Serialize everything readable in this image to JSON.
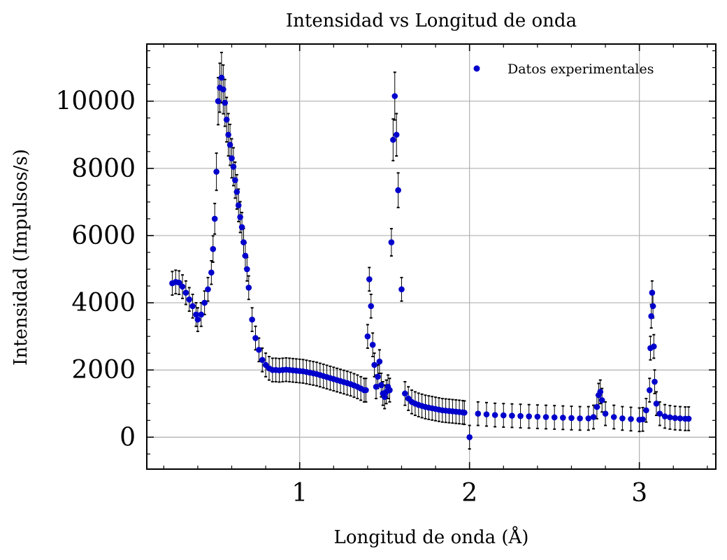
{
  "chart_data": {
    "type": "scatter",
    "title": "Intensidad vs Longitud de onda",
    "xlabel": "Longitud de onda (Å)",
    "ylabel": "Intensidad (Impulsos/s)",
    "xlim": [
      0.1,
      3.45
    ],
    "ylim": [
      -950,
      11700
    ],
    "xticks": [
      1,
      2,
      3
    ],
    "yticks": [
      0,
      2000,
      4000,
      6000,
      8000,
      10000
    ],
    "grid": true,
    "legend": {
      "position": "top-right",
      "entries": [
        "Datos experimentales"
      ]
    },
    "series": [
      {
        "name": "Datos experimentales",
        "color": "#0000cc",
        "errorbar_color": "#000000",
        "error_fraction": 0.07,
        "error_floor": 350,
        "x": [
          0.25,
          0.27,
          0.29,
          0.31,
          0.33,
          0.35,
          0.37,
          0.39,
          0.4,
          0.42,
          0.44,
          0.46,
          0.48,
          0.49,
          0.5,
          0.51,
          0.52,
          0.53,
          0.54,
          0.55,
          0.56,
          0.57,
          0.58,
          0.59,
          0.6,
          0.61,
          0.62,
          0.63,
          0.64,
          0.65,
          0.66,
          0.67,
          0.68,
          0.69,
          0.7,
          0.72,
          0.74,
          0.76,
          0.78,
          0.8,
          0.82,
          0.84,
          0.86,
          0.88,
          0.9,
          0.92,
          0.94,
          0.96,
          0.98,
          1.0,
          1.02,
          1.04,
          1.06,
          1.08,
          1.1,
          1.12,
          1.14,
          1.16,
          1.18,
          1.2,
          1.22,
          1.24,
          1.26,
          1.28,
          1.3,
          1.32,
          1.34,
          1.36,
          1.38,
          1.39,
          1.4,
          1.41,
          1.42,
          1.43,
          1.44,
          1.45,
          1.46,
          1.47,
          1.48,
          1.49,
          1.5,
          1.51,
          1.52,
          1.53,
          1.54,
          1.55,
          1.56,
          1.57,
          1.58,
          1.6,
          1.62,
          1.64,
          1.66,
          1.68,
          1.7,
          1.72,
          1.74,
          1.76,
          1.78,
          1.8,
          1.82,
          1.84,
          1.86,
          1.88,
          1.9,
          1.92,
          1.94,
          1.96,
          1.97,
          2.0,
          2.05,
          2.1,
          2.15,
          2.2,
          2.25,
          2.3,
          2.35,
          2.4,
          2.45,
          2.5,
          2.55,
          2.6,
          2.65,
          2.7,
          2.73,
          2.75,
          2.76,
          2.77,
          2.78,
          2.8,
          2.85,
          2.9,
          2.95,
          3.0,
          3.02,
          3.04,
          3.06,
          3.065,
          3.07,
          3.075,
          3.08,
          3.085,
          3.09,
          3.1,
          3.12,
          3.15,
          3.18,
          3.21,
          3.24,
          3.27,
          3.29
        ],
        "y": [
          4580,
          4620,
          4600,
          4480,
          4300,
          4100,
          3900,
          3650,
          3500,
          3650,
          4000,
          4400,
          4900,
          5600,
          6500,
          7900,
          10000,
          10400,
          10700,
          10350,
          9950,
          9450,
          9000,
          8700,
          8300,
          8050,
          7650,
          7300,
          6900,
          6550,
          6250,
          5800,
          5400,
          5000,
          4450,
          3500,
          2950,
          2600,
          2300,
          2150,
          2050,
          2000,
          2000,
          1990,
          2000,
          2010,
          2000,
          1990,
          1980,
          1970,
          1960,
          1940,
          1920,
          1900,
          1880,
          1850,
          1820,
          1790,
          1760,
          1730,
          1700,
          1670,
          1640,
          1610,
          1580,
          1540,
          1500,
          1450,
          1400,
          1400,
          3000,
          4700,
          3900,
          2750,
          2150,
          1500,
          1800,
          2250,
          1550,
          1300,
          1200,
          1350,
          1500,
          1400,
          5800,
          8850,
          10150,
          9000,
          7350,
          4400,
          1300,
          1150,
          1050,
          1000,
          960,
          930,
          900,
          880,
          860,
          840,
          820,
          800,
          790,
          780,
          770,
          760,
          750,
          740,
          730,
          0,
          700,
          680,
          660,
          650,
          640,
          630,
          620,
          610,
          600,
          590,
          580,
          570,
          560,
          560,
          600,
          900,
          1250,
          1350,
          1100,
          700,
          600,
          560,
          540,
          520,
          530,
          800,
          1400,
          2650,
          3600,
          4300,
          3900,
          2700,
          1650,
          1000,
          700,
          620,
          590,
          570,
          560,
          550,
          550
        ]
      }
    ]
  }
}
